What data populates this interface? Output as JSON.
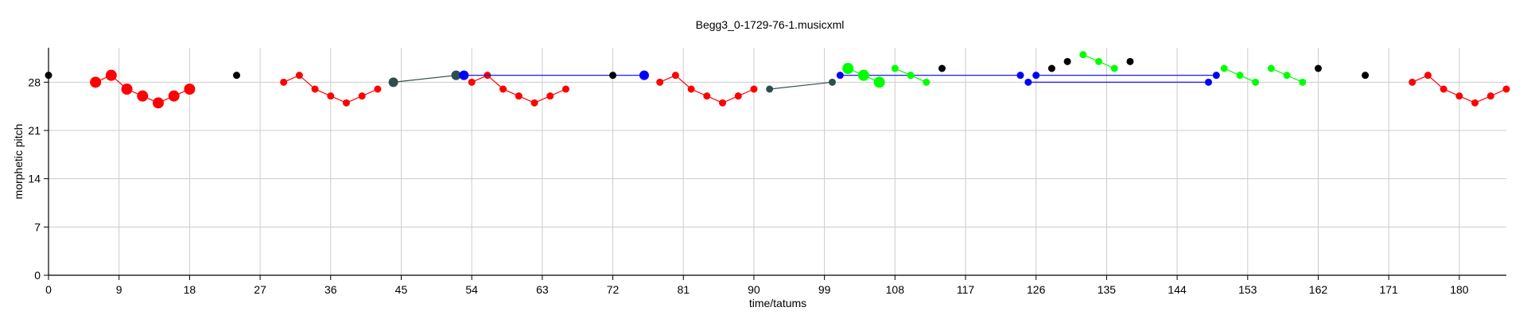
{
  "chart_data": {
    "type": "scatter",
    "title": "Begg3_0-1729-76-1.musicxml",
    "xlabel": "time/tatums",
    "ylabel": "morphetic pitch",
    "xlim": [
      0,
      186
    ],
    "ylim": [
      0,
      33
    ],
    "xticks": [
      0,
      9,
      18,
      27,
      36,
      45,
      54,
      63,
      72,
      81,
      90,
      99,
      108,
      117,
      126,
      135,
      144,
      153,
      162,
      171,
      180
    ],
    "yticks": [
      0,
      7,
      14,
      21,
      28
    ],
    "grid": true,
    "colors": {
      "red": "#ff0000",
      "blue": "#0000ff",
      "green": "#00ff00",
      "teal": "#2f4f4f",
      "black": "#000000",
      "grid": "#cccccc"
    },
    "points": [
      {
        "x": 0,
        "y": 29,
        "color": "black",
        "size": "small"
      },
      {
        "x": 24,
        "y": 29,
        "color": "black",
        "size": "small"
      },
      {
        "x": 72,
        "y": 29,
        "color": "black",
        "size": "small"
      },
      {
        "x": 114,
        "y": 30,
        "color": "black",
        "size": "small"
      },
      {
        "x": 128,
        "y": 30,
        "color": "black",
        "size": "small"
      },
      {
        "x": 130,
        "y": 31,
        "color": "black",
        "size": "small"
      },
      {
        "x": 138,
        "y": 31,
        "color": "black",
        "size": "small"
      },
      {
        "x": 162,
        "y": 30,
        "color": "black",
        "size": "small"
      },
      {
        "x": 168,
        "y": 29,
        "color": "black",
        "size": "small"
      }
    ],
    "series": [
      {
        "color": "red",
        "size": "large",
        "points": [
          [
            6,
            28
          ],
          [
            8,
            29
          ],
          [
            10,
            27
          ],
          [
            12,
            26
          ],
          [
            14,
            25
          ],
          [
            16,
            26
          ],
          [
            18,
            27
          ]
        ]
      },
      {
        "color": "red",
        "size": "small",
        "points": [
          [
            30,
            28
          ],
          [
            32,
            29
          ],
          [
            34,
            27
          ],
          [
            36,
            26
          ],
          [
            38,
            25
          ],
          [
            40,
            26
          ],
          [
            42,
            27
          ]
        ]
      },
      {
        "color": "red",
        "size": "small",
        "points": [
          [
            54,
            28
          ],
          [
            56,
            29
          ],
          [
            58,
            27
          ],
          [
            60,
            26
          ],
          [
            62,
            25
          ],
          [
            64,
            26
          ],
          [
            66,
            27
          ]
        ]
      },
      {
        "color": "red",
        "size": "small",
        "points": [
          [
            78,
            28
          ],
          [
            80,
            29
          ],
          [
            82,
            27
          ],
          [
            84,
            26
          ],
          [
            86,
            25
          ],
          [
            88,
            26
          ],
          [
            90,
            27
          ]
        ]
      },
      {
        "color": "red",
        "size": "small",
        "points": [
          [
            174,
            28
          ],
          [
            176,
            29
          ],
          [
            178,
            27
          ],
          [
            180,
            26
          ],
          [
            182,
            25
          ],
          [
            184,
            26
          ],
          [
            186,
            27
          ]
        ]
      },
      {
        "color": "teal",
        "size": "medium",
        "points": [
          [
            44,
            28
          ],
          [
            52,
            29
          ]
        ]
      },
      {
        "color": "teal",
        "size": "small",
        "points": [
          [
            92,
            27
          ],
          [
            100,
            28
          ]
        ]
      },
      {
        "color": "blue",
        "size": "medium",
        "points": [
          [
            53,
            29
          ],
          [
            76,
            29
          ]
        ]
      },
      {
        "color": "blue",
        "size": "small",
        "points": [
          [
            101,
            29
          ],
          [
            124,
            29
          ]
        ]
      },
      {
        "color": "blue",
        "size": "small",
        "points": [
          [
            125,
            28
          ],
          [
            148,
            28
          ]
        ]
      },
      {
        "color": "blue",
        "size": "small",
        "points": [
          [
            126,
            29
          ],
          [
            149,
            29
          ]
        ]
      },
      {
        "color": "green",
        "size": "large",
        "points": [
          [
            102,
            30
          ],
          [
            104,
            29
          ],
          [
            106,
            28
          ]
        ]
      },
      {
        "color": "green",
        "size": "small",
        "points": [
          [
            108,
            30
          ],
          [
            110,
            29
          ],
          [
            112,
            28
          ]
        ]
      },
      {
        "color": "green",
        "size": "small",
        "points": [
          [
            132,
            32
          ],
          [
            134,
            31
          ],
          [
            136,
            30
          ]
        ]
      },
      {
        "color": "green",
        "size": "small",
        "points": [
          [
            150,
            30
          ],
          [
            152,
            29
          ],
          [
            154,
            28
          ]
        ]
      },
      {
        "color": "green",
        "size": "small",
        "points": [
          [
            156,
            30
          ],
          [
            158,
            29
          ],
          [
            160,
            28
          ]
        ]
      }
    ]
  }
}
